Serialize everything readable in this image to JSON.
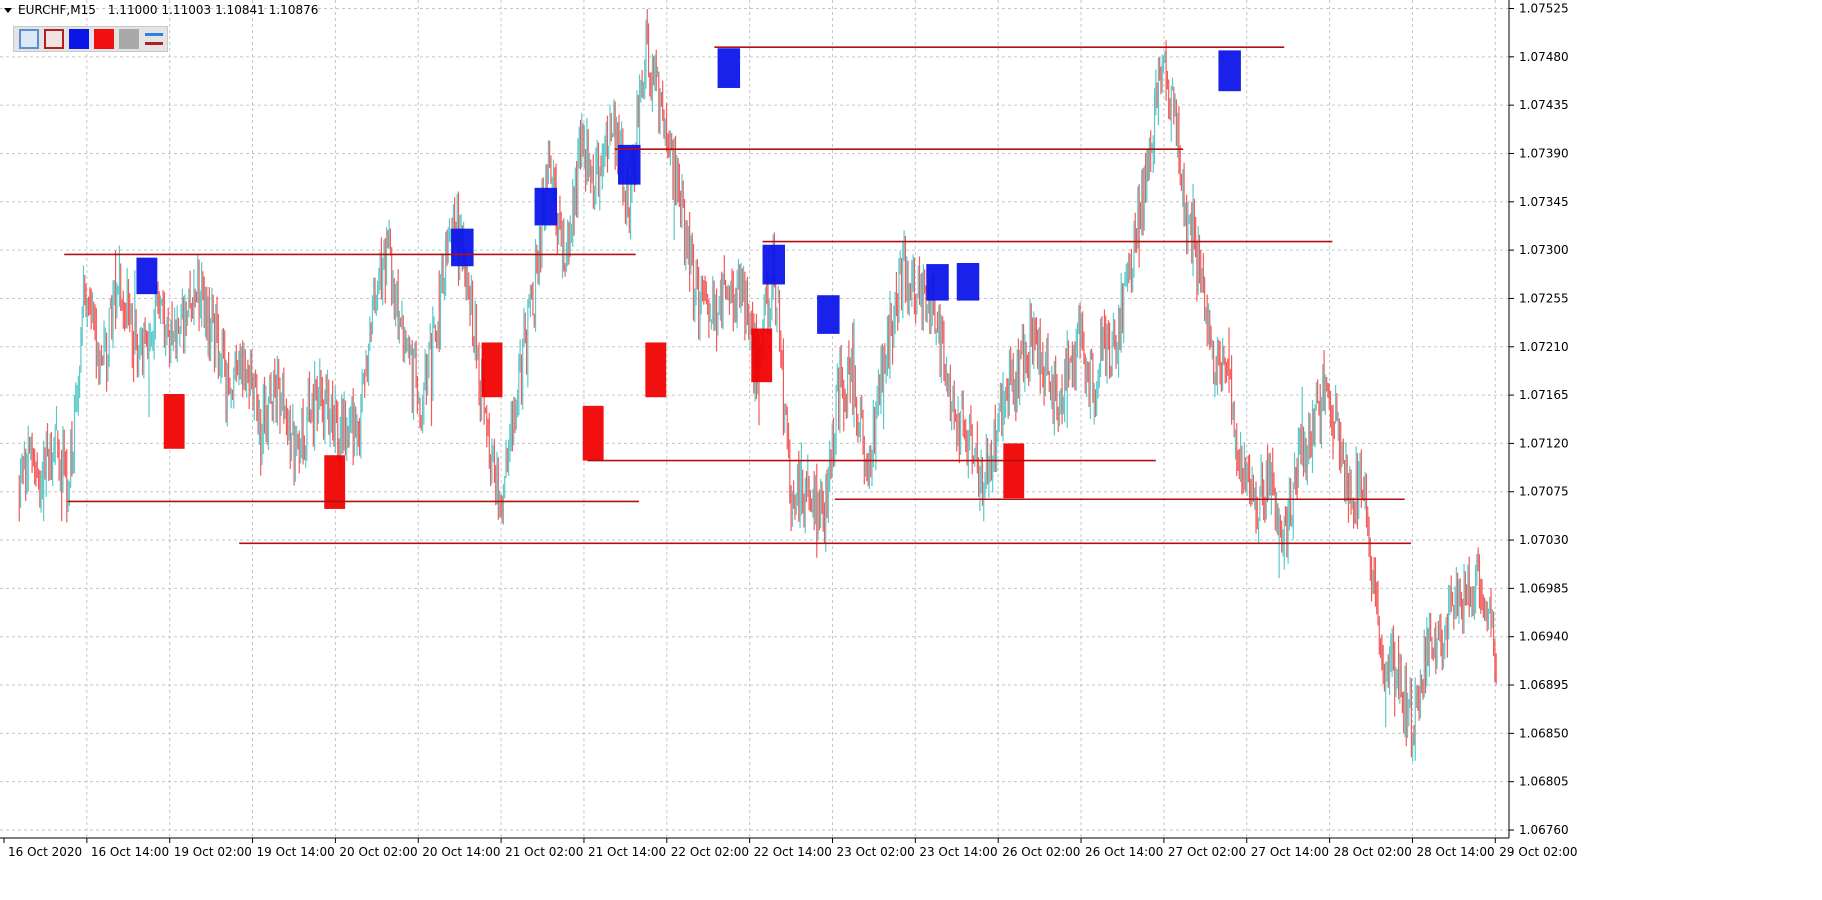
{
  "window": {
    "symbol_title": "EURCHF,M15",
    "ohlc": [
      "1.11000",
      "1.11003",
      "1.10841",
      "1.10876"
    ]
  },
  "toolbar": {
    "buttons": [
      {
        "icon": "rectangle-blue-outline-icon",
        "color": "#5a8fd0"
      },
      {
        "icon": "rectangle-red-outline-icon",
        "color": "#b02020"
      },
      {
        "icon": "blue-fill-icon",
        "color": "#0a17e8"
      },
      {
        "icon": "red-fill-icon",
        "color": "#f01010"
      },
      {
        "icon": "gray-fill-icon",
        "color": "#a9a9a9"
      },
      {
        "icon": "line-pair-icon",
        "colors": [
          "#2f7fe0",
          "#b02020"
        ]
      }
    ]
  },
  "colors": {
    "bull": "#5cc9c9",
    "bear": "#f45a5a",
    "level_line": "#b01010",
    "supply_zone": "#0a14ea",
    "demand_zone": "#f00000",
    "grid": "#c6c6c6",
    "axis": "#000000"
  },
  "chart_data": {
    "type": "candlestick",
    "symbol": "EURCHF",
    "timeframe": "M15",
    "y_ticks": [
      "1.07525",
      "1.07480",
      "1.07435",
      "1.07390",
      "1.07345",
      "1.07300",
      "1.07255",
      "1.07210",
      "1.07165",
      "1.07120",
      "1.07075",
      "1.07030",
      "1.06985",
      "1.06940",
      "1.06895",
      "1.06850",
      "1.06805",
      "1.06760"
    ],
    "ylim": [
      1.0674,
      1.0754
    ],
    "x_ticks": [
      "16 Oct 2020",
      "16 Oct 14:00",
      "19 Oct 02:00",
      "19 Oct 14:00",
      "20 Oct 02:00",
      "20 Oct 14:00",
      "21 Oct 02:00",
      "21 Oct 14:00",
      "22 Oct 02:00",
      "22 Oct 14:00",
      "23 Oct 02:00",
      "23 Oct 14:00",
      "26 Oct 02:00",
      "26 Oct 14:00",
      "27 Oct 02:00",
      "27 Oct 14:00",
      "28 Oct 02:00",
      "28 Oct 14:00",
      "29 Oct 02:00"
    ],
    "grid": true,
    "price_path": [
      [
        0,
        1.0708
      ],
      [
        2,
        1.0712
      ],
      [
        3,
        1.0708
      ],
      [
        4,
        1.0725
      ],
      [
        5,
        1.0718
      ],
      [
        6,
        1.0727
      ],
      [
        7,
        1.0723
      ],
      [
        8,
        1.0722
      ],
      [
        9,
        1.0724
      ],
      [
        10,
        1.0722
      ],
      [
        11,
        1.0726
      ],
      [
        12,
        1.0724
      ],
      [
        13,
        1.0716
      ],
      [
        14,
        1.0721
      ],
      [
        15,
        1.0712
      ],
      [
        16,
        1.0718
      ],
      [
        17,
        1.0711
      ],
      [
        18,
        1.0715
      ],
      [
        19,
        1.0715
      ],
      [
        20,
        1.0714
      ],
      [
        21,
        1.0711
      ],
      [
        22,
        1.0726
      ],
      [
        23,
        1.0729
      ],
      [
        24,
        1.0722
      ],
      [
        25,
        1.0714
      ],
      [
        26,
        1.0724
      ],
      [
        27,
        1.0732
      ],
      [
        28,
        1.0728
      ],
      [
        29,
        1.0713
      ],
      [
        30,
        1.0708
      ],
      [
        31,
        1.0716
      ],
      [
        32,
        1.0726
      ],
      [
        33,
        1.0737
      ],
      [
        34,
        1.0731
      ],
      [
        35,
        1.0738
      ],
      [
        36,
        1.0737
      ],
      [
        37,
        1.0741
      ],
      [
        38,
        1.0735
      ],
      [
        39,
        1.0748
      ],
      [
        40,
        1.0744
      ],
      [
        41,
        1.0735
      ],
      [
        42,
        1.0728
      ],
      [
        43,
        1.0722
      ],
      [
        44,
        1.0728
      ],
      [
        45,
        1.0725
      ],
      [
        46,
        1.072
      ],
      [
        47,
        1.0728
      ],
      [
        48,
        1.0709
      ],
      [
        49,
        1.0707
      ],
      [
        50,
        1.0705
      ],
      [
        51,
        1.0716
      ],
      [
        52,
        1.0718
      ],
      [
        53,
        1.0709
      ],
      [
        54,
        1.0722
      ],
      [
        55,
        1.0727
      ],
      [
        56,
        1.0727
      ],
      [
        57,
        1.0723
      ],
      [
        58,
        1.0717
      ],
      [
        59,
        1.0712
      ],
      [
        60,
        1.0709
      ],
      [
        61,
        1.0713
      ],
      [
        62,
        1.0719
      ],
      [
        63,
        1.0721
      ],
      [
        64,
        1.0719
      ],
      [
        65,
        1.0716
      ],
      [
        66,
        1.0722
      ],
      [
        67,
        1.0717
      ],
      [
        68,
        1.0721
      ],
      [
        69,
        1.0727
      ],
      [
        70,
        1.0734
      ],
      [
        71,
        1.0747
      ],
      [
        72,
        1.0742
      ],
      [
        73,
        1.0731
      ],
      [
        74,
        1.0723
      ],
      [
        75,
        1.0719
      ],
      [
        76,
        1.071
      ],
      [
        77,
        1.0706
      ],
      [
        78,
        1.0708
      ],
      [
        79,
        1.0705
      ],
      [
        80,
        1.0711
      ],
      [
        81,
        1.0716
      ],
      [
        82,
        1.0713
      ],
      [
        83,
        1.0708
      ],
      [
        84,
        1.0705
      ],
      [
        85,
        1.0692
      ],
      [
        86,
        1.0688
      ],
      [
        87,
        1.0687
      ],
      [
        88,
        1.0693
      ],
      [
        89,
        1.0696
      ],
      [
        90,
        1.0697
      ],
      [
        91,
        1.0699
      ],
      [
        92,
        1.069
      ]
    ],
    "zones": [
      {
        "type": "supply",
        "t0": 7.3,
        "t1": 8.6,
        "high": 1.07293,
        "low": 1.07259
      },
      {
        "type": "supply",
        "t0": 26.9,
        "t1": 28.3,
        "high": 1.0732,
        "low": 1.07285
      },
      {
        "type": "supply",
        "t0": 32.1,
        "t1": 33.5,
        "high": 1.07358,
        "low": 1.07323
      },
      {
        "type": "supply",
        "t0": 37.3,
        "t1": 38.7,
        "high": 1.07398,
        "low": 1.07361
      },
      {
        "type": "supply",
        "t0": 43.5,
        "t1": 44.9,
        "high": 1.07488,
        "low": 1.07451
      },
      {
        "type": "supply",
        "t0": 46.3,
        "t1": 47.7,
        "high": 1.07305,
        "low": 1.07268
      },
      {
        "type": "supply",
        "t0": 49.7,
        "t1": 51.1,
        "high": 1.07258,
        "low": 1.07222
      },
      {
        "type": "supply",
        "t0": 56.5,
        "t1": 57.9,
        "high": 1.07287,
        "low": 1.07253
      },
      {
        "type": "supply",
        "t0": 58.4,
        "t1": 59.8,
        "high": 1.07288,
        "low": 1.07253
      },
      {
        "type": "supply",
        "t0": 74.7,
        "t1": 76.1,
        "high": 1.07486,
        "low": 1.07448
      },
      {
        "type": "demand",
        "t0": 9.0,
        "t1": 10.3,
        "high": 1.07166,
        "low": 1.07115
      },
      {
        "type": "demand",
        "t0": 19.0,
        "t1": 20.3,
        "high": 1.07109,
        "low": 1.07059
      },
      {
        "type": "demand",
        "t0": 28.8,
        "t1": 30.1,
        "high": 1.07214,
        "low": 1.07163
      },
      {
        "type": "demand",
        "t0": 35.1,
        "t1": 36.4,
        "high": 1.07155,
        "low": 1.07104
      },
      {
        "type": "demand",
        "t0": 39.0,
        "t1": 40.3,
        "high": 1.07214,
        "low": 1.07163
      },
      {
        "type": "demand",
        "t0": 45.6,
        "t1": 46.9,
        "high": 1.07227,
        "low": 1.07177
      },
      {
        "type": "demand",
        "t0": 61.3,
        "t1": 62.6,
        "high": 1.0712,
        "low": 1.07069
      }
    ],
    "levels": [
      {
        "price": 1.07296,
        "t0": 2.8,
        "t1": 38.4
      },
      {
        "price": 1.07066,
        "t0": 3.0,
        "t1": 38.6
      },
      {
        "price": 1.07027,
        "t0": 13.7,
        "t1": 86.7
      },
      {
        "price": 1.07489,
        "t0": 43.3,
        "t1": 78.8
      },
      {
        "price": 1.07394,
        "t0": 37.1,
        "t1": 72.5
      },
      {
        "price": 1.07104,
        "t0": 35.4,
        "t1": 70.8
      },
      {
        "price": 1.07308,
        "t0": 46.3,
        "t1": 81.8
      },
      {
        "price": 1.07068,
        "t0": 50.8,
        "t1": 86.3
      }
    ]
  }
}
